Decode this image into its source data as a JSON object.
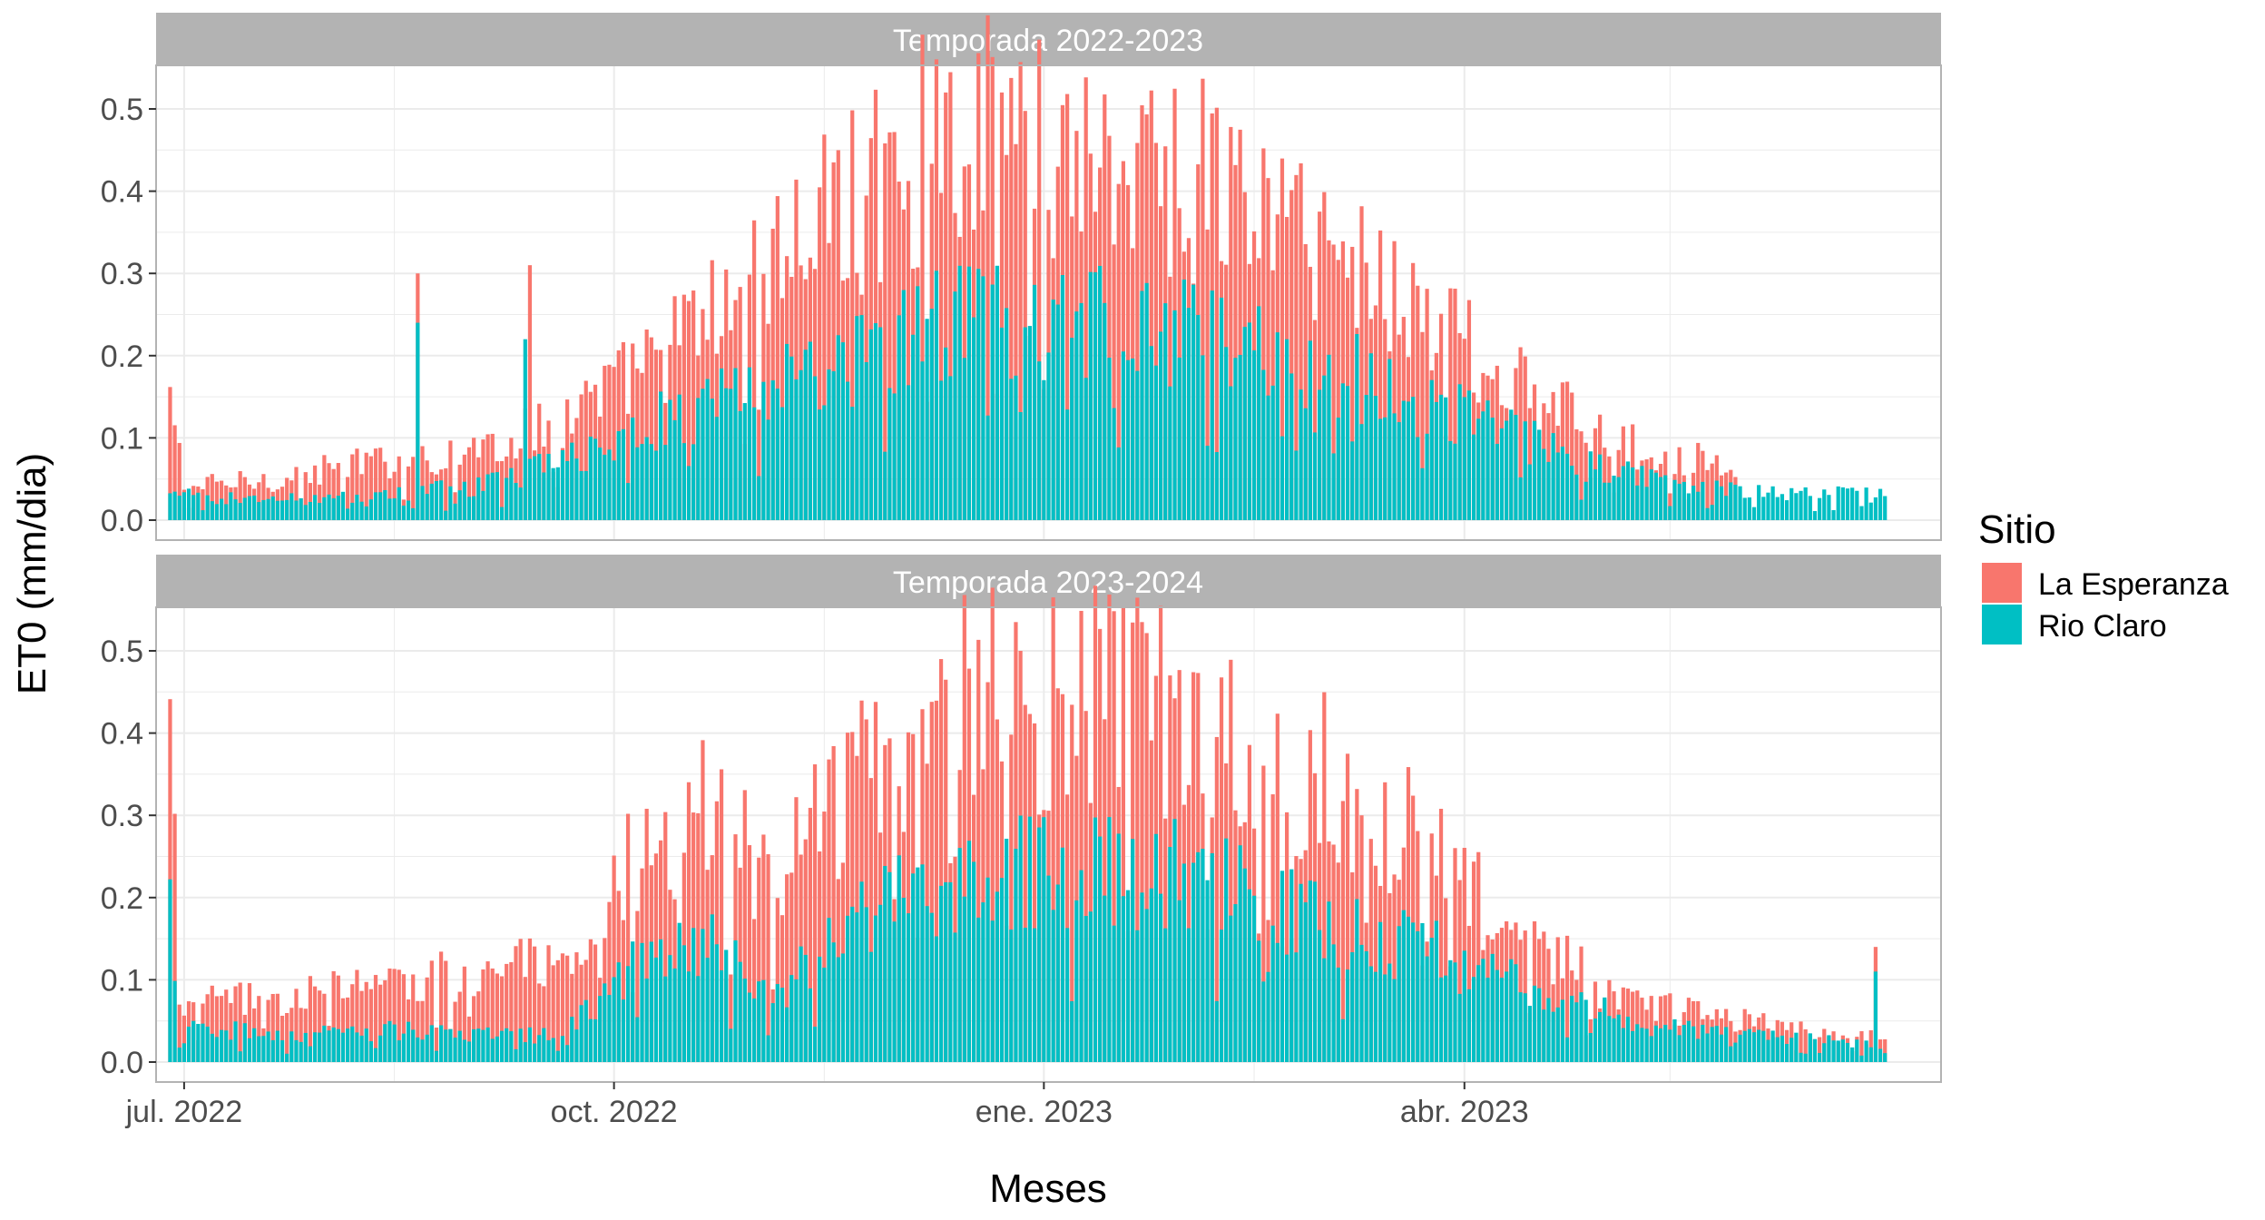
{
  "chart_data": {
    "type": "bar",
    "position": "overlay",
    "facet_by": "Temporada",
    "xlabel": "Meses",
    "ylabel": "ET0 (mm/dia)",
    "ylim": [
      0,
      0.5
    ],
    "yticks": [
      "0.0",
      "0.1",
      "0.2",
      "0.3",
      "0.4",
      "0.5"
    ],
    "xlim": [
      "2022-06-25",
      "2023-07-12"
    ],
    "xticks": [
      {
        "date": "2022-07-01",
        "label": "jul. 2022"
      },
      {
        "date": "2022-10-01",
        "label": "oct. 2022"
      },
      {
        "date": "2023-01-01",
        "label": "ene. 2023"
      },
      {
        "date": "2023-04-01",
        "label": "abr. 2023"
      }
    ],
    "x_minor_ticks": [
      "2022-08-15",
      "2022-11-15",
      "2023-02-15",
      "2023-05-15"
    ],
    "grid": true,
    "legend": {
      "title": "Sitio",
      "position": "right",
      "items": [
        {
          "name": "La Esperanza",
          "color": "#F8766D"
        },
        {
          "name": "Rio Claro",
          "color": "#00BFC4"
        }
      ]
    },
    "panels": [
      {
        "title": "Temporada 2022-2023",
        "series": [
          {
            "name": "La Esperanza",
            "color": "#F8766D",
            "x_start": "2022-06-28",
            "end_date": "2023-05-29",
            "anchors": [
              [
                "2022-06-28",
                0.15
              ],
              [
                "2022-07-01",
                0.04
              ],
              [
                "2022-07-20",
                0.05
              ],
              [
                "2022-08-10",
                0.07
              ],
              [
                "2022-08-28",
                0.08
              ],
              [
                "2022-09-15",
                0.11
              ],
              [
                "2022-10-01",
                0.16
              ],
              [
                "2022-10-20",
                0.24
              ],
              [
                "2022-11-10",
                0.34
              ],
              [
                "2022-11-28",
                0.42
              ],
              [
                "2022-12-15",
                0.48
              ],
              [
                "2023-01-01",
                0.46
              ],
              [
                "2023-01-20",
                0.44
              ],
              [
                "2023-02-10",
                0.4
              ],
              [
                "2023-03-01",
                0.34
              ],
              [
                "2023-03-20",
                0.27
              ],
              [
                "2023-04-10",
                0.17
              ],
              [
                "2023-05-05",
                0.09
              ],
              [
                "2023-05-29",
                0.07
              ]
            ],
            "spikes": [
              [
                "2022-08-20",
                0.3
              ],
              [
                "2022-09-13",
                0.31
              ],
              [
                "2022-12-11",
                0.52
              ],
              [
                "2022-12-23",
                0.52
              ]
            ]
          },
          {
            "name": "Rio Claro",
            "color": "#00BFC4",
            "x_start": "2022-06-28",
            "end_date": "2023-06-30",
            "anchors": [
              [
                "2022-06-28",
                0.03
              ],
              [
                "2022-07-20",
                0.025
              ],
              [
                "2022-08-10",
                0.03
              ],
              [
                "2022-09-01",
                0.04
              ],
              [
                "2022-09-20",
                0.07
              ],
              [
                "2022-10-10",
                0.12
              ],
              [
                "2022-11-01",
                0.16
              ],
              [
                "2022-11-20",
                0.19
              ],
              [
                "2022-12-10",
                0.24
              ],
              [
                "2023-01-01",
                0.24
              ],
              [
                "2023-01-25",
                0.24
              ],
              [
                "2023-02-15",
                0.21
              ],
              [
                "2023-03-10",
                0.17
              ],
              [
                "2023-04-01",
                0.13
              ],
              [
                "2023-04-25",
                0.07
              ],
              [
                "2023-05-20",
                0.04
              ],
              [
                "2023-06-30",
                0.03
              ]
            ],
            "spikes": [
              [
                "2022-08-20",
                0.24
              ],
              [
                "2022-09-12",
                0.22
              ]
            ]
          }
        ]
      },
      {
        "title": "Temporada 2023-2024",
        "series": [
          {
            "name": "La Esperanza",
            "color": "#F8766D",
            "x_start": "2022-06-28",
            "end_date": "2023-06-30",
            "anchors": [
              [
                "2022-06-28",
                0.4
              ],
              [
                "2022-06-30",
                0.07
              ],
              [
                "2022-07-25",
                0.08
              ],
              [
                "2022-08-20",
                0.1
              ],
              [
                "2022-09-10",
                0.12
              ],
              [
                "2022-09-25",
                0.1
              ],
              [
                "2022-10-05",
                0.26
              ],
              [
                "2022-10-20",
                0.3
              ],
              [
                "2022-11-05",
                0.22
              ],
              [
                "2022-11-20",
                0.34
              ],
              [
                "2022-12-10",
                0.45
              ],
              [
                "2023-01-01",
                0.44
              ],
              [
                "2023-01-20",
                0.44
              ],
              [
                "2023-02-10",
                0.4
              ],
              [
                "2023-03-01",
                0.35
              ],
              [
                "2023-03-20",
                0.28
              ],
              [
                "2023-04-10",
                0.16
              ],
              [
                "2023-05-01",
                0.09
              ],
              [
                "2023-05-20",
                0.06
              ],
              [
                "2023-06-10",
                0.04
              ],
              [
                "2023-06-25",
                0.03
              ]
            ],
            "spikes": [
              [
                "2022-12-10",
                0.49
              ],
              [
                "2022-12-27",
                0.5
              ],
              [
                "2023-06-28",
                0.14
              ]
            ]
          },
          {
            "name": "Rio Claro",
            "color": "#00BFC4",
            "x_start": "2022-06-28",
            "end_date": "2023-06-30",
            "anchors": [
              [
                "2022-06-28",
                0.2
              ],
              [
                "2022-06-30",
                0.05
              ],
              [
                "2022-07-20",
                0.03
              ],
              [
                "2022-08-20",
                0.04
              ],
              [
                "2022-09-20",
                0.03
              ],
              [
                "2022-10-05",
                0.12
              ],
              [
                "2022-10-20",
                0.15
              ],
              [
                "2022-11-05",
                0.08
              ],
              [
                "2022-11-20",
                0.17
              ],
              [
                "2022-12-10",
                0.22
              ],
              [
                "2023-01-01",
                0.23
              ],
              [
                "2023-01-25",
                0.23
              ],
              [
                "2023-02-15",
                0.2
              ],
              [
                "2023-03-10",
                0.16
              ],
              [
                "2023-04-01",
                0.12
              ],
              [
                "2023-04-20",
                0.08
              ],
              [
                "2023-05-15",
                0.04
              ],
              [
                "2023-06-30",
                0.02
              ]
            ],
            "spikes": [
              [
                "2023-06-28",
                0.11
              ]
            ]
          }
        ]
      }
    ]
  }
}
